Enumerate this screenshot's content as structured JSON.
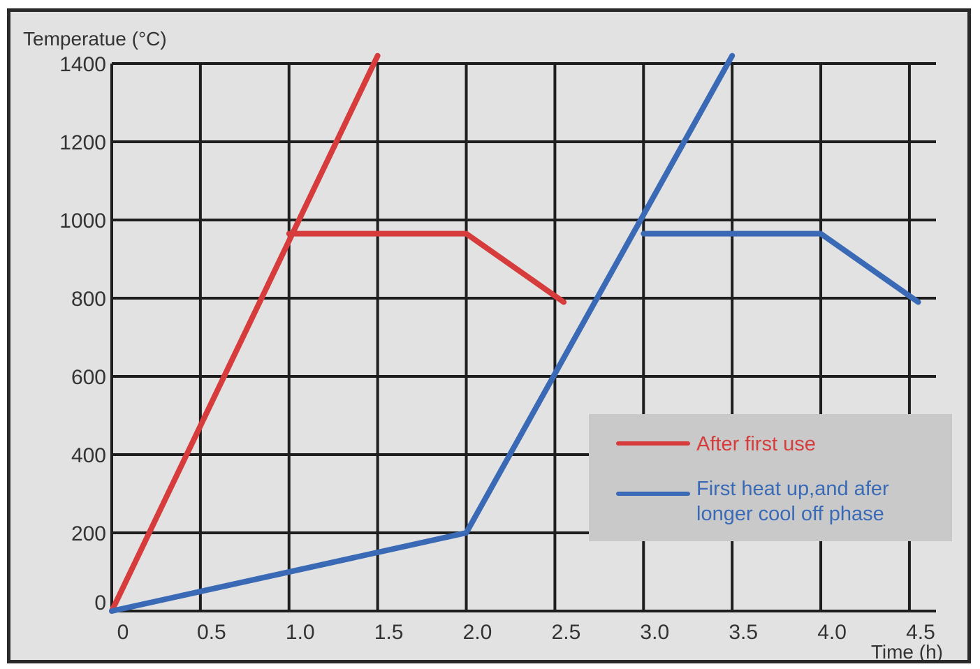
{
  "chart_data": {
    "type": "line",
    "title": "",
    "ylabel": "Temperatue (°C)",
    "xlabel": "Time (h)",
    "x_ticks": [
      "0",
      "0.5",
      "1.0",
      "1.5",
      "2.0",
      "2.5",
      "3.0",
      "3.5",
      "4.0",
      "4.5"
    ],
    "y_ticks": [
      "0",
      "200",
      "400",
      "600",
      "800",
      "1000",
      "1200",
      "1400"
    ],
    "xlim": [
      0,
      4.65
    ],
    "ylim": [
      0,
      1400
    ],
    "grid": true,
    "legend_position": "lower-right",
    "series": [
      {
        "name": "After first  use",
        "color": "#d63c3c",
        "ramp": [
          [
            0,
            0
          ],
          [
            1.5,
            1420
          ]
        ],
        "curve": [
          [
            1.0,
            965
          ],
          [
            2.0,
            965
          ],
          [
            2.55,
            790
          ]
        ]
      },
      {
        "name": "First  heat up,and afer longer cool off  phase",
        "legend_lines": [
          "First  heat up,and afer",
          "longer cool off  phase"
        ],
        "color": "#3a6ab5",
        "ramp": [
          [
            0,
            0
          ],
          [
            2.0,
            200
          ],
          [
            3.5,
            1420
          ]
        ],
        "curve": [
          [
            3.0,
            965
          ],
          [
            4.0,
            965
          ],
          [
            4.55,
            790
          ]
        ]
      }
    ]
  }
}
